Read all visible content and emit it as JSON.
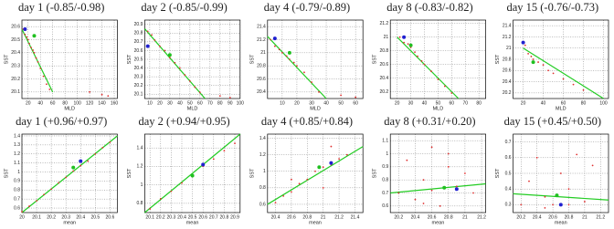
{
  "chart_data": [
    {
      "type": "scatter",
      "title": "day 1 (-0.85/-0.98)",
      "xlabel": "MLD",
      "ylabel": "SST",
      "xlim": [
        10,
        165
      ],
      "ylim": [
        20.05,
        20.65
      ],
      "xticks": [
        20,
        40,
        60,
        80,
        100,
        120,
        140,
        160
      ],
      "yticks": [
        20.1,
        20.2,
        20.3,
        20.4,
        20.5,
        20.6
      ],
      "grid": true,
      "series": [
        {
          "color": "#e03030",
          "x": [
            12,
            15,
            18,
            20,
            22,
            25,
            28,
            30,
            33,
            36,
            40,
            45,
            50,
            55,
            120,
            140,
            150
          ],
          "values": [
            20.58,
            20.54,
            20.52,
            20.5,
            20.47,
            20.44,
            20.42,
            20.4,
            20.36,
            20.33,
            20.28,
            20.22,
            20.16,
            20.12,
            20.1,
            20.08,
            20.07
          ]
        },
        {
          "color": "#2020d0",
          "x": [
            15
          ],
          "values": [
            20.58
          ]
        },
        {
          "color": "#20c020",
          "x": [
            30
          ],
          "values": [
            20.53
          ]
        }
      ],
      "fit": {
        "color": "#22cc22",
        "x": [
          10,
          60
        ],
        "values": [
          20.58,
          20.1
        ]
      }
    },
    {
      "type": "scatter",
      "title": "day 2 (-0.85/-0.99)",
      "xlabel": "MLD",
      "ylabel": "SST",
      "xlim": [
        5,
        100
      ],
      "ylim": [
        20.05,
        20.95
      ],
      "xticks": [
        10,
        20,
        30,
        40,
        50,
        60,
        70,
        80,
        90,
        100
      ],
      "yticks": [
        20.1,
        20.2,
        20.3,
        20.4,
        20.5,
        20.6,
        20.7,
        20.8,
        20.9
      ],
      "grid": true,
      "series": [
        {
          "color": "#e03030",
          "x": [
            8,
            12,
            15,
            20,
            25,
            30,
            35,
            40,
            45,
            50,
            55,
            60,
            80,
            90
          ],
          "values": [
            20.82,
            20.78,
            20.72,
            20.65,
            20.6,
            20.52,
            20.46,
            20.4,
            20.32,
            20.25,
            20.18,
            20.12,
            20.08,
            20.06
          ]
        },
        {
          "color": "#2020d0",
          "x": [
            8
          ],
          "values": [
            20.65
          ]
        },
        {
          "color": "#20c020",
          "x": [
            30
          ],
          "values": [
            20.55
          ]
        }
      ],
      "fit": {
        "color": "#22cc22",
        "x": [
          5,
          65
        ],
        "values": [
          20.85,
          20.05
        ]
      }
    },
    {
      "type": "scatter",
      "title": "day 4 (-0.79/-0.89)",
      "xlabel": "MLD",
      "ylabel": "SST",
      "xlim": [
        0,
        65
      ],
      "ylim": [
        20.3,
        21.5
      ],
      "xticks": [
        10,
        20,
        30,
        40,
        50,
        60
      ],
      "yticks": [
        20.4,
        20.6,
        20.8,
        21,
        21.2,
        21.4
      ],
      "grid": true,
      "series": [
        {
          "color": "#e03030",
          "x": [
            2,
            5,
            8,
            10,
            13,
            15,
            18,
            20,
            25,
            30,
            35,
            50,
            60
          ],
          "values": [
            21.2,
            21.1,
            21.05,
            21.0,
            20.95,
            20.9,
            20.85,
            20.8,
            20.7,
            20.55,
            20.4,
            20.35,
            20.32
          ]
        },
        {
          "color": "#2020d0",
          "x": [
            5
          ],
          "values": [
            21.22
          ]
        },
        {
          "color": "#20c020",
          "x": [
            15
          ],
          "values": [
            21.0
          ]
        }
      ],
      "fit": {
        "color": "#22cc22",
        "x": [
          0,
          40
        ],
        "values": [
          21.25,
          20.3
        ]
      }
    },
    {
      "type": "scatter",
      "title": "day 8 (-0.83/-0.82)",
      "xlabel": "MLD",
      "ylabel": "SST",
      "xlim": [
        15,
        85
      ],
      "ylim": [
        20.1,
        21.25
      ],
      "xticks": [
        20,
        30,
        40,
        50,
        60,
        70,
        80
      ],
      "yticks": [
        20.2,
        20.4,
        20.6,
        20.8,
        21,
        21.2
      ],
      "grid": true,
      "series": [
        {
          "color": "#e03030",
          "x": [
            22,
            25,
            28,
            30,
            33,
            35,
            38,
            40,
            45,
            50,
            55,
            60
          ],
          "values": [
            21.0,
            20.92,
            20.9,
            20.85,
            20.78,
            20.72,
            20.65,
            20.6,
            20.5,
            20.38,
            20.28,
            20.18
          ]
        },
        {
          "color": "#2020d0",
          "x": [
            25
          ],
          "values": [
            21.0
          ]
        },
        {
          "color": "#20c020",
          "x": [
            30
          ],
          "values": [
            20.88
          ]
        }
      ],
      "fit": {
        "color": "#22cc22",
        "x": [
          20,
          65
        ],
        "values": [
          21.0,
          20.1
        ]
      }
    },
    {
      "type": "scatter",
      "title": "day 15 (-0.76/-0.73)",
      "xlabel": "MLD",
      "ylabel": "SST",
      "xlim": [
        10,
        105
      ],
      "ylim": [
        20.1,
        21.5
      ],
      "xticks": [
        20,
        40,
        60,
        80,
        100
      ],
      "yticks": [
        20.2,
        20.4,
        20.6,
        20.8,
        21,
        21.2,
        21.4
      ],
      "grid": true,
      "series": [
        {
          "color": "#e03030",
          "x": [
            22,
            25,
            28,
            30,
            35,
            40,
            45,
            50,
            60,
            70,
            80
          ],
          "values": [
            21.05,
            20.9,
            20.85,
            20.8,
            20.75,
            20.7,
            20.6,
            20.55,
            20.45,
            20.35,
            20.25
          ]
        },
        {
          "color": "#2020d0",
          "x": [
            20
          ],
          "values": [
            21.1
          ]
        },
        {
          "color": "#20c020",
          "x": [
            30
          ],
          "values": [
            20.75
          ]
        }
      ],
      "fit": {
        "color": "#22cc22",
        "x": [
          20,
          100
        ],
        "values": [
          21.0,
          20.1
        ]
      }
    },
    {
      "type": "scatter",
      "title": "day 1 (+0.96/+0.97)",
      "xlabel": "mean",
      "ylabel": "SST",
      "xlim": [
        20,
        20.65
      ],
      "ylim": [
        0.55,
        1.42
      ],
      "xticks": [
        20,
        20.1,
        20.2,
        20.3,
        20.4,
        20.5,
        20.6
      ],
      "yticks": [
        0.6,
        0.7,
        0.8,
        0.9,
        1,
        1.1,
        1.2,
        1.3,
        1.4
      ],
      "grid": true,
      "series": [
        {
          "color": "#e03030",
          "x": [
            20.0,
            20.05,
            20.1,
            20.15,
            20.2,
            20.25,
            20.3,
            20.35,
            20.4,
            20.45,
            20.5,
            20.55,
            20.6
          ],
          "values": [
            0.56,
            0.62,
            0.68,
            0.75,
            0.81,
            0.88,
            0.94,
            1.01,
            1.07,
            1.12,
            1.2,
            1.27,
            1.33
          ]
        },
        {
          "color": "#2020d0",
          "x": [
            20.4
          ],
          "values": [
            1.12
          ]
        },
        {
          "color": "#20c020",
          "x": [
            20.35
          ],
          "values": [
            1.05
          ]
        }
      ],
      "fit": {
        "color": "#22cc22",
        "x": [
          20,
          20.65
        ],
        "values": [
          0.55,
          1.4
        ]
      }
    },
    {
      "type": "scatter",
      "title": "day 2 (+0.94/+0.95)",
      "xlabel": "mean",
      "ylabel": "SST",
      "xlim": [
        20.05,
        20.95
      ],
      "ylim": [
        0.7,
        1.55
      ],
      "xticks": [
        20.1,
        20.2,
        20.3,
        20.4,
        20.5,
        20.6,
        20.7,
        20.8,
        20.9
      ],
      "yticks": [
        0.8,
        1,
        1.2,
        1.4
      ],
      "grid": true,
      "series": [
        {
          "color": "#e03030",
          "x": [
            20.1,
            20.2,
            20.3,
            20.4,
            20.5,
            20.6,
            20.7,
            20.8,
            20.9
          ],
          "values": [
            0.74,
            0.85,
            0.93,
            1.02,
            1.1,
            1.2,
            1.28,
            1.37,
            1.45
          ]
        },
        {
          "color": "#2020d0",
          "x": [
            20.6
          ],
          "values": [
            1.22
          ]
        },
        {
          "color": "#20c020",
          "x": [
            20.5
          ],
          "values": [
            1.1
          ]
        }
      ],
      "fit": {
        "color": "#22cc22",
        "x": [
          20.05,
          20.95
        ],
        "values": [
          0.7,
          1.55
        ]
      }
    },
    {
      "type": "scatter",
      "title": "day 4 (+0.85/+0.84)",
      "xlabel": "mean",
      "ylabel": "SST",
      "xlim": [
        20.3,
        21.5
      ],
      "ylim": [
        0.5,
        1.45
      ],
      "xticks": [
        20.4,
        20.6,
        20.8,
        21,
        21.2,
        21.4
      ],
      "yticks": [
        0.6,
        0.8,
        1,
        1.2,
        1.4
      ],
      "grid": true,
      "series": [
        {
          "color": "#e03030",
          "x": [
            20.4,
            20.5,
            20.6,
            20.7,
            20.8,
            20.9,
            21.0,
            21.1,
            21.2,
            21.3,
            20.6,
            21.0,
            21.1
          ],
          "values": [
            0.62,
            0.7,
            0.75,
            0.85,
            0.9,
            1.0,
            1.05,
            1.08,
            1.15,
            1.2,
            0.9,
            0.8,
            1.3
          ]
        },
        {
          "color": "#2020d0",
          "x": [
            21.1
          ],
          "values": [
            1.1
          ]
        },
        {
          "color": "#20c020",
          "x": [
            20.95
          ],
          "values": [
            1.05
          ]
        }
      ],
      "fit": {
        "color": "#22cc22",
        "x": [
          20.3,
          21.5
        ],
        "values": [
          0.6,
          1.3
        ]
      }
    },
    {
      "type": "scatter",
      "title": "day 8 (+0.31/+0.20)",
      "xlabel": "mean",
      "ylabel": "SST",
      "xlim": [
        20.1,
        21.25
      ],
      "ylim": [
        0.55,
        1.15
      ],
      "xticks": [
        20.2,
        20.4,
        20.6,
        20.8,
        21,
        21.2
      ],
      "yticks": [
        0.6,
        0.7,
        0.8,
        0.9,
        1,
        1.1
      ],
      "grid": true,
      "series": [
        {
          "color": "#e03030",
          "x": [
            20.2,
            20.3,
            20.4,
            20.5,
            20.6,
            20.7,
            20.8,
            20.9,
            21.0,
            21.1,
            20.5,
            20.8,
            20.6
          ],
          "values": [
            0.7,
            0.95,
            0.65,
            0.8,
            1.05,
            0.6,
            0.9,
            0.75,
            0.85,
            0.7,
            0.62,
            1.0,
            0.72
          ]
        },
        {
          "color": "#2020d0",
          "x": [
            20.9
          ],
          "values": [
            0.73
          ]
        },
        {
          "color": "#20c020",
          "x": [
            20.75
          ],
          "values": [
            0.74
          ]
        }
      ],
      "fit": {
        "color": "#22cc22",
        "x": [
          20.1,
          21.25
        ],
        "values": [
          0.7,
          0.77
        ]
      }
    },
    {
      "type": "scatter",
      "title": "day 15 (+0.45/+0.50)",
      "xlabel": "mean",
      "ylabel": "SST",
      "xlim": [
        20.1,
        21.3
      ],
      "ylim": [
        0.25,
        0.75
      ],
      "xticks": [
        20.2,
        20.4,
        20.6,
        20.8,
        21,
        21.2
      ],
      "yticks": [
        0.3,
        0.4,
        0.5,
        0.6,
        0.7
      ],
      "grid": true,
      "series": [
        {
          "color": "#e03030",
          "x": [
            20.2,
            20.3,
            20.4,
            20.5,
            20.6,
            20.7,
            20.8,
            20.9,
            21.0,
            21.1,
            20.5,
            20.8
          ],
          "values": [
            0.3,
            0.45,
            0.6,
            0.35,
            0.3,
            0.5,
            0.4,
            0.62,
            0.32,
            0.55,
            0.28,
            0.3
          ]
        },
        {
          "color": "#2020d0",
          "x": [
            20.7
          ],
          "values": [
            0.3
          ]
        },
        {
          "color": "#20c020",
          "x": [
            20.65
          ],
          "values": [
            0.36
          ]
        }
      ],
      "fit": {
        "color": "#22cc22",
        "x": [
          20.1,
          21.3
        ],
        "values": [
          0.37,
          0.33
        ]
      }
    }
  ]
}
